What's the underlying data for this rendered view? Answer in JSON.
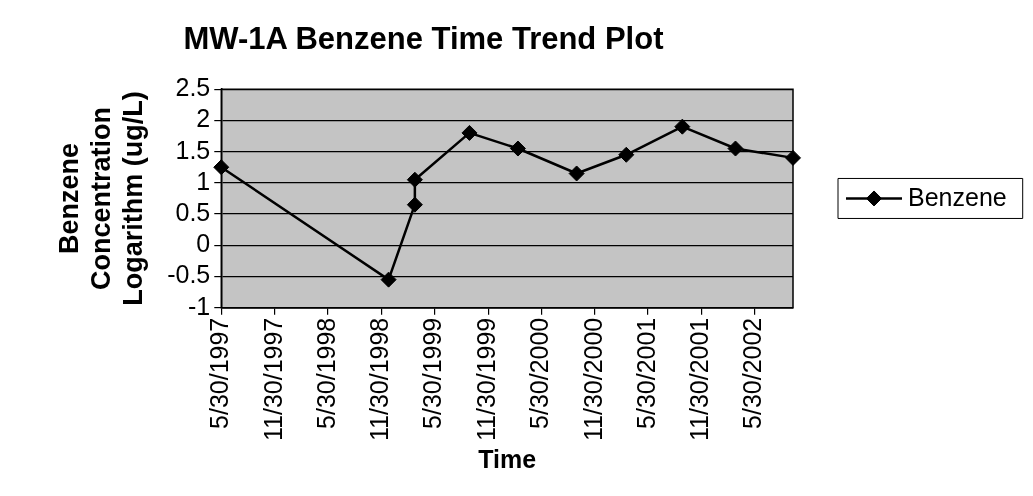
{
  "chart_data": {
    "type": "line",
    "title": "MW-1A Benzene Time Trend Plot",
    "xlabel": "Time",
    "ylabel": "Benzene Concentration Logarithm (ug/L)",
    "x": [
      "1997-05-30",
      "1998-12-24",
      "1999-03-24",
      "1999-03-24",
      "1999-09-27",
      "2000-03-11",
      "2000-09-28",
      "2001-03-17",
      "2001-09-25",
      "2002-03-26",
      "2002-10-09"
    ],
    "series": [
      {
        "name": "Benzene",
        "color": "#000000",
        "values": [
          1.25,
          -0.55,
          0.65,
          1.05,
          1.8,
          1.55,
          1.15,
          1.45,
          1.9,
          1.55,
          1.4
        ]
      }
    ],
    "xlim": [
      "1997-05-30",
      "2002-10-09"
    ],
    "xticks": [
      {
        "value": "1997-05-30",
        "label": "5/30/1997"
      },
      {
        "value": "1997-11-30",
        "label": "11/30/1997"
      },
      {
        "value": "1998-05-30",
        "label": "5/30/1998"
      },
      {
        "value": "1998-11-30",
        "label": "11/30/1998"
      },
      {
        "value": "1999-05-30",
        "label": "5/30/1999"
      },
      {
        "value": "1999-11-30",
        "label": "11/30/1999"
      },
      {
        "value": "2000-05-30",
        "label": "5/30/2000"
      },
      {
        "value": "2000-11-30",
        "label": "11/30/2000"
      },
      {
        "value": "2001-05-30",
        "label": "5/30/2001"
      },
      {
        "value": "2001-11-30",
        "label": "11/30/2001"
      },
      {
        "value": "2002-05-30",
        "label": "5/30/2002"
      }
    ],
    "ylim": [
      -1,
      2.5
    ],
    "yticks": [
      -1,
      -0.5,
      0,
      0.5,
      1,
      1.5,
      2,
      2.5
    ],
    "grid": "y",
    "legend": "right",
    "marker": "diamond",
    "line_style": "solid"
  }
}
